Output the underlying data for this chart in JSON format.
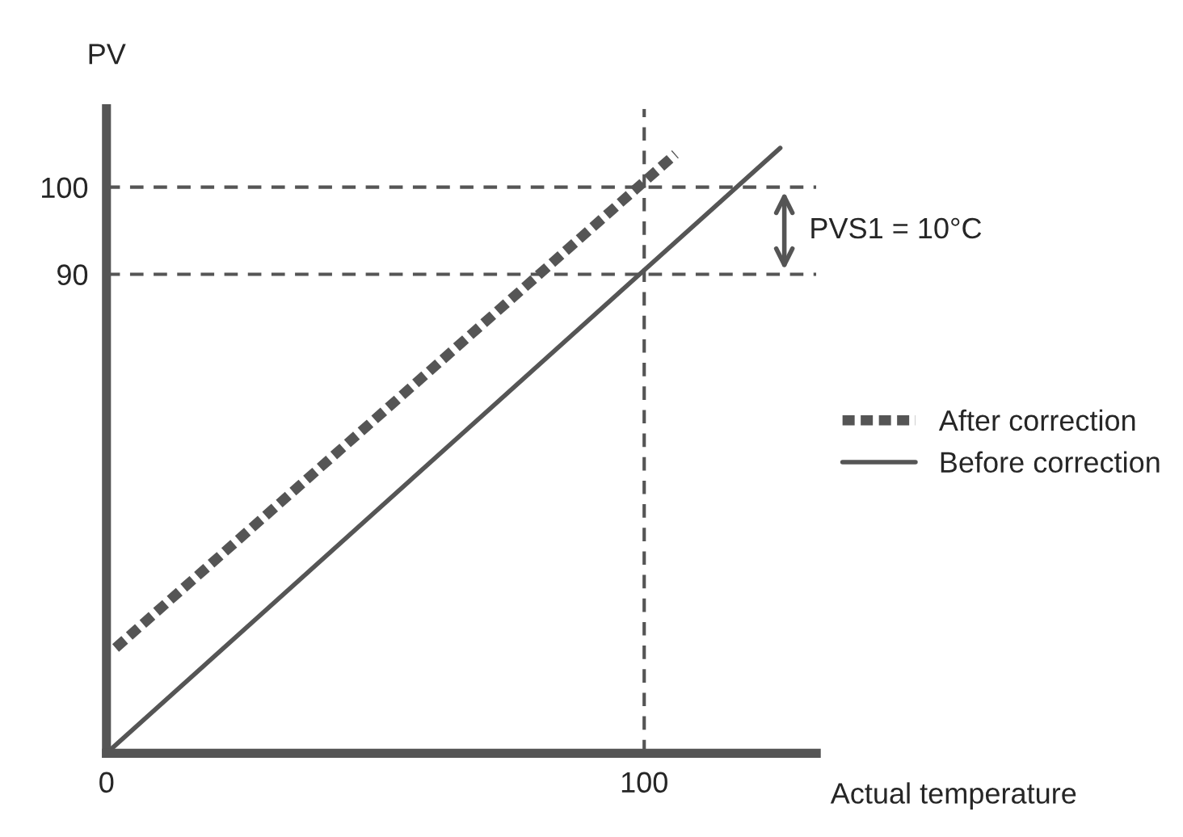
{
  "chart_data": {
    "type": "line",
    "xlabel": "Actual temperature",
    "ylabel": "PV",
    "series": [
      {
        "name": "After correction",
        "color": "#555555",
        "line_style": "dotted",
        "x": [
          1.7,
          105.8
        ],
        "values": [
          47.1,
          103.8
        ]
      },
      {
        "name": "Before correction",
        "color": "#555555",
        "line_style": "solid",
        "x": [
          0,
          125.3
        ],
        "values": [
          35,
          104.5
        ]
      }
    ],
    "xlim": [
      0,
      132
    ],
    "ylim": [
      35,
      109
    ],
    "xticks": [
      0,
      100
    ],
    "yticks": [
      90,
      100
    ],
    "ref_lines": [
      {
        "axis": "y",
        "value": 100,
        "color": "#555555",
        "line_style": "dashed"
      },
      {
        "axis": "y",
        "value": 90,
        "color": "#555555",
        "line_style": "dashed"
      },
      {
        "axis": "x",
        "value": 100,
        "color": "#555555",
        "line_style": "dashed"
      }
    ],
    "annotations": [
      "PVS1 = 10°C"
    ],
    "legend": "right",
    "grid": false,
    "marker": "none"
  }
}
